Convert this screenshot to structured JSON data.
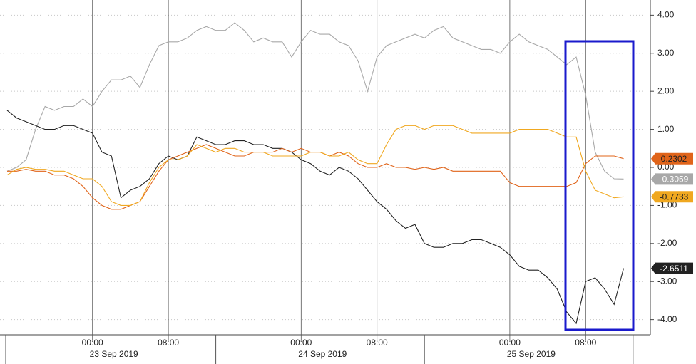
{
  "chart_data": {
    "type": "line",
    "categories": [
      null,
      null,
      null,
      null,
      null,
      null,
      null,
      null,
      null,
      "00:00",
      null,
      null,
      null,
      null,
      null,
      null,
      null,
      "08:00",
      null,
      null,
      null,
      null,
      null,
      null,
      null,
      null,
      null,
      null,
      null,
      null,
      null,
      "00:00",
      null,
      null,
      null,
      null,
      null,
      null,
      null,
      "08:00",
      null,
      null,
      null,
      null,
      null,
      null,
      null,
      null,
      null,
      null,
      null,
      null,
      null,
      "00:00",
      null,
      null,
      null,
      null,
      null,
      null,
      null,
      "08:00",
      null,
      null,
      null,
      null
    ],
    "date_labels": [
      "23 Sep 2019",
      "24 Sep 2019",
      "25 Sep 2019"
    ],
    "series": [
      {
        "color": "#a8a8a8",
        "values": [
          -0.1,
          0,
          0.2,
          1.0,
          1.6,
          1.5,
          1.6,
          1.6,
          1.8,
          1.6,
          2.0,
          2.3,
          2.3,
          2.4,
          2.1,
          2.7,
          3.2,
          3.3,
          3.3,
          3.4,
          3.6,
          3.7,
          3.6,
          3.6,
          3.8,
          3.6,
          3.3,
          3.4,
          3.3,
          3.3,
          2.9,
          3.3,
          3.6,
          3.5,
          3.5,
          3.3,
          3.2,
          2.8,
          2.0,
          2.9,
          3.2,
          3.3,
          3.4,
          3.5,
          3.4,
          3.6,
          3.7,
          3.4,
          3.3,
          3.2,
          3.1,
          3.1,
          3.0,
          3.3,
          3.5,
          3.3,
          3.2,
          3.1,
          2.9,
          2.7,
          2.9,
          1.9,
          0.4,
          -0.1,
          -0.3,
          -0.3059
        ]
      },
      {
        "color": "#222222",
        "values": [
          1.5,
          1.3,
          1.2,
          1.1,
          1.0,
          1.0,
          1.1,
          1.1,
          1.0,
          0.9,
          0.4,
          0.3,
          -0.8,
          -0.6,
          -0.5,
          -0.3,
          0.1,
          0.3,
          0.2,
          0.3,
          0.8,
          0.7,
          0.6,
          0.6,
          0.7,
          0.7,
          0.6,
          0.6,
          0.5,
          0.5,
          0.4,
          0.2,
          0.1,
          -0.1,
          -0.2,
          0.0,
          -0.1,
          -0.3,
          -0.6,
          -0.9,
          -1.1,
          -1.4,
          -1.6,
          -1.5,
          -2.0,
          -2.1,
          -2.1,
          -2.0,
          -2.0,
          -1.9,
          -1.9,
          -2.0,
          -2.1,
          -2.3,
          -2.6,
          -2.7,
          -2.7,
          -2.9,
          -3.2,
          -3.8,
          -4.1,
          -3.0,
          -2.9,
          -3.2,
          -3.6,
          -2.6511
        ]
      },
      {
        "color": "#e0641a",
        "values": [
          -0.1,
          -0.1,
          -0.05,
          -0.1,
          -0.1,
          -0.2,
          -0.2,
          -0.3,
          -0.5,
          -0.8,
          -1.0,
          -1.1,
          -1.1,
          -1.0,
          -0.9,
          -0.5,
          -0.1,
          0.2,
          0.3,
          0.4,
          0.5,
          0.6,
          0.5,
          0.4,
          0.3,
          0.3,
          0.4,
          0.4,
          0.4,
          0.5,
          0.4,
          0.5,
          0.4,
          0.4,
          0.3,
          0.4,
          0.3,
          0.1,
          0.0,
          0.0,
          0.1,
          0.0,
          0.0,
          -0.05,
          0.0,
          -0.05,
          0.0,
          -0.1,
          -0.1,
          -0.1,
          -0.1,
          -0.1,
          -0.1,
          -0.4,
          -0.5,
          -0.5,
          -0.5,
          -0.5,
          -0.5,
          -0.5,
          -0.4,
          0.1,
          0.3,
          0.3,
          0.3,
          0.2302
        ]
      },
      {
        "color": "#f0a820",
        "values": [
          -0.2,
          -0.05,
          0.0,
          -0.05,
          -0.05,
          -0.1,
          -0.1,
          -0.2,
          -0.3,
          -0.3,
          -0.5,
          -0.9,
          -1.0,
          -1.0,
          -0.9,
          -0.4,
          0.0,
          0.2,
          0.2,
          0.3,
          0.6,
          0.5,
          0.4,
          0.5,
          0.5,
          0.4,
          0.4,
          0.4,
          0.3,
          0.3,
          0.3,
          0.3,
          0.4,
          0.4,
          0.3,
          0.3,
          0.4,
          0.2,
          0.1,
          0.1,
          0.6,
          1.0,
          1.1,
          1.1,
          1.0,
          1.1,
          1.1,
          1.1,
          1.0,
          0.9,
          0.9,
          0.9,
          0.9,
          0.9,
          1.0,
          1.0,
          1.0,
          1.0,
          0.9,
          0.8,
          0.8,
          -0.1,
          -0.6,
          -0.7,
          -0.8,
          -0.7733
        ]
      }
    ],
    "tag_text_colors": [
      "#ffffff",
      "#ffffff",
      "#222222",
      "#222222"
    ],
    "ylim": [
      -4.4,
      4.4
    ],
    "yticks": [
      {
        "value": 4,
        "label": "4.00"
      },
      {
        "value": 3,
        "label": "3.00"
      },
      {
        "value": 2,
        "label": "2.00"
      },
      {
        "value": 1,
        "label": "1.00"
      },
      {
        "value": 0,
        "label": "0.00"
      },
      {
        "value": -1,
        "label": "-1.00"
      },
      {
        "value": -2,
        "label": "-2.00"
      },
      {
        "value": -3,
        "label": "-3.00"
      },
      {
        "value": -4,
        "label": "-4.00"
      }
    ],
    "grid": true
  }
}
